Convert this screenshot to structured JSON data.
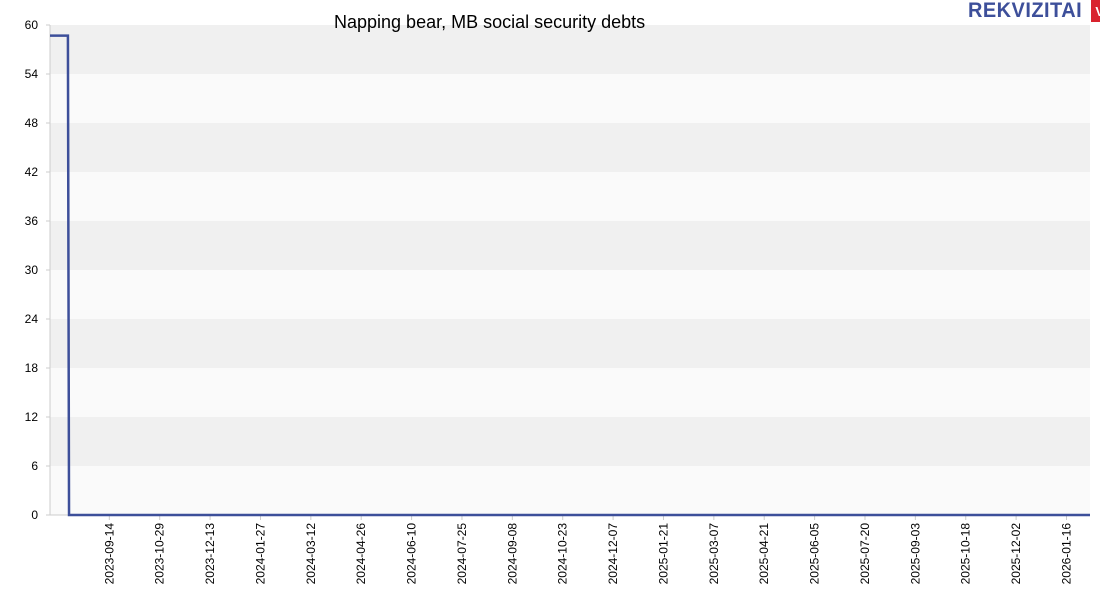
{
  "brand": {
    "name": "REKVIZITAI",
    "badge": "VŽ",
    "colors": {
      "text": "#3d4f9a",
      "badge": "#d9232e"
    }
  },
  "chart_data": {
    "type": "line",
    "title": "Napping bear, MB social security debts",
    "xlabel": "",
    "ylabel": "",
    "ylim": [
      0,
      60
    ],
    "yticks": [
      0,
      6,
      12,
      18,
      24,
      30,
      36,
      42,
      48,
      54,
      60
    ],
    "xlim": [
      "2023-07-23",
      "2026-02-06"
    ],
    "xticks": [
      "2023-09-14",
      "2023-10-29",
      "2023-12-13",
      "2024-01-27",
      "2024-03-12",
      "2024-04-26",
      "2024-06-10",
      "2024-07-25",
      "2024-09-08",
      "2024-10-23",
      "2024-12-07",
      "2025-01-21",
      "2025-03-07",
      "2025-04-21",
      "2025-06-05",
      "2025-07-20",
      "2025-09-03",
      "2025-10-18",
      "2025-12-02",
      "2026-01-16"
    ],
    "grid": "horizontal-bands",
    "series_color": "#3d4f9a",
    "series": [
      {
        "step": true,
        "points": [
          {
            "x": "2023-07-23",
            "y": 58.7
          },
          {
            "x": "2023-08-08",
            "y": 58.7
          },
          {
            "x": "2023-08-09",
            "y": 0
          },
          {
            "x": "2026-02-06",
            "y": 0
          }
        ]
      }
    ]
  }
}
